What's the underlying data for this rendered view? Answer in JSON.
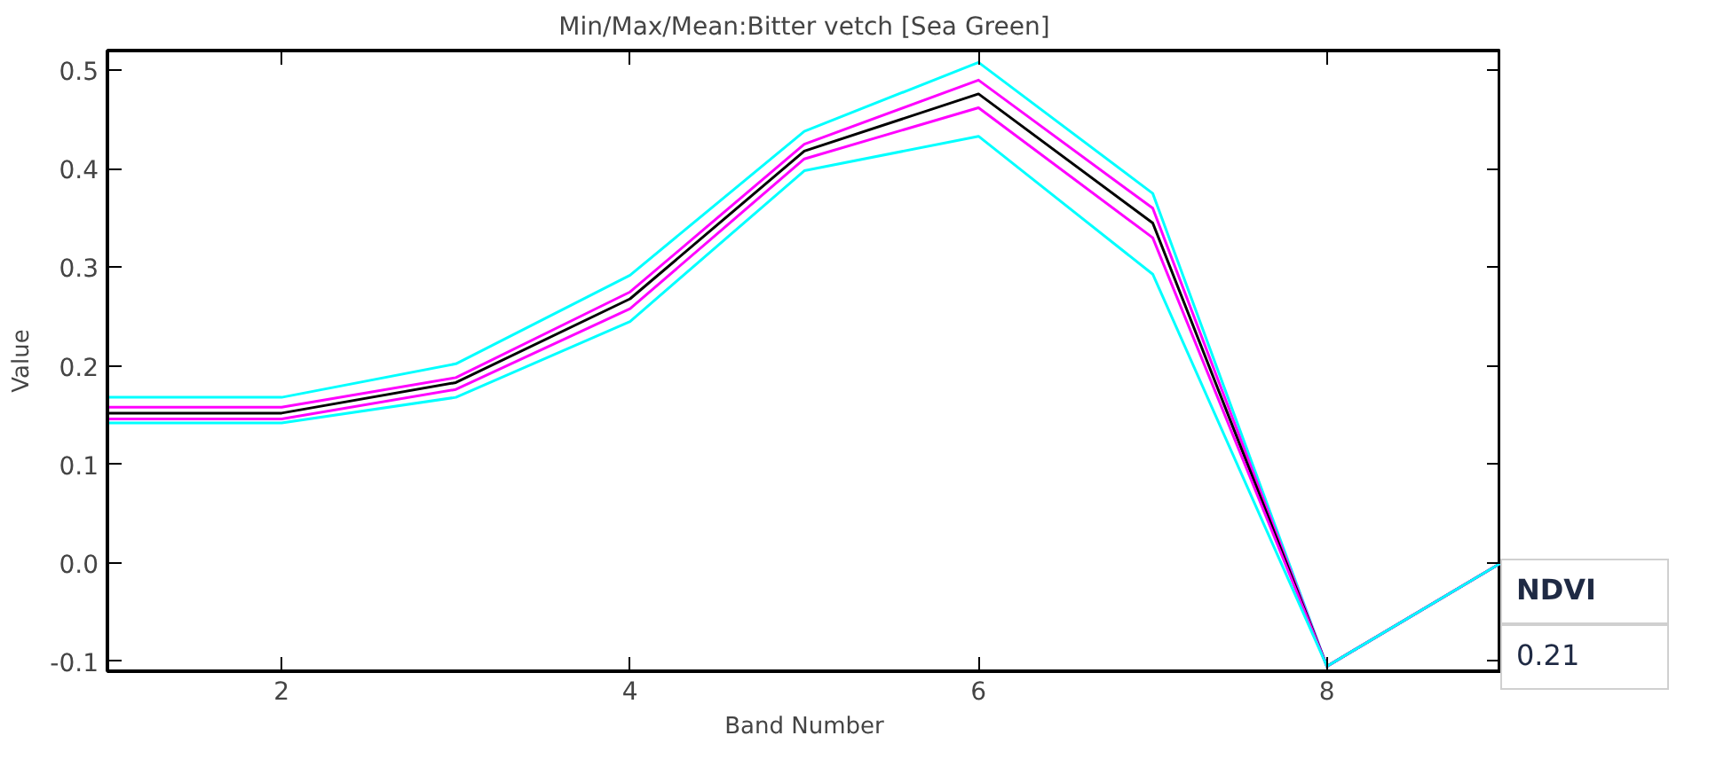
{
  "chart_data": {
    "type": "line",
    "title": "Min/Max/Mean:Bitter vetch [Sea Green]",
    "xlabel": "Band Number",
    "ylabel": "Value",
    "x": [
      1,
      2,
      3,
      4,
      5,
      6,
      7,
      8,
      9
    ],
    "series": [
      {
        "color": "#00ffff",
        "values": [
          0.168,
          0.168,
          0.202,
          0.292,
          0.438,
          0.508,
          0.375,
          -0.105,
          0.0
        ]
      },
      {
        "color": "#ff00ff",
        "values": [
          0.158,
          0.158,
          0.188,
          0.275,
          0.425,
          0.49,
          0.36,
          -0.105,
          0.0
        ]
      },
      {
        "color": "#000000",
        "values": [
          0.152,
          0.152,
          0.183,
          0.268,
          0.418,
          0.476,
          0.345,
          -0.105,
          0.0
        ]
      },
      {
        "color": "#ff00ff",
        "values": [
          0.146,
          0.146,
          0.176,
          0.258,
          0.41,
          0.462,
          0.33,
          -0.105,
          0.0
        ]
      },
      {
        "color": "#00ffff",
        "values": [
          0.142,
          0.142,
          0.168,
          0.245,
          0.398,
          0.433,
          0.293,
          -0.105,
          0.0
        ]
      }
    ],
    "xlim": [
      1,
      9
    ],
    "ylim": [
      -0.11,
      0.52
    ],
    "xticks": [
      2,
      4,
      6,
      8
    ],
    "yticks": [
      {
        "value": -0.1,
        "label": "-0.1"
      },
      {
        "value": 0.0,
        "label": "0.0"
      },
      {
        "value": 0.1,
        "label": "0.1"
      },
      {
        "value": 0.2,
        "label": "0.2"
      },
      {
        "value": 0.3,
        "label": "0.3"
      },
      {
        "value": 0.4,
        "label": "0.4"
      },
      {
        "value": 0.5,
        "label": "0.5"
      }
    ],
    "grid": false,
    "marker": "none",
    "line_style": "solid",
    "annotations": [
      "NDVI",
      "0.21"
    ]
  }
}
